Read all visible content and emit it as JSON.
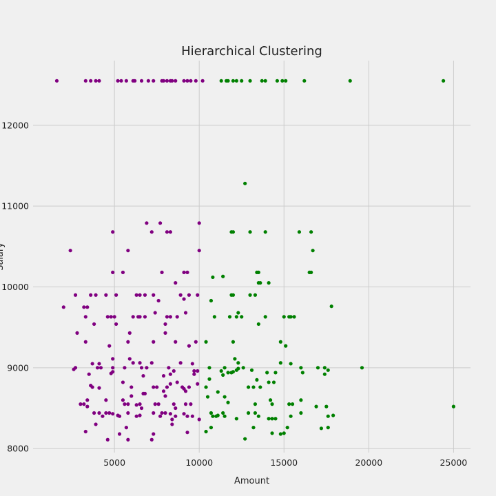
{
  "chart_data": {
    "type": "scatter",
    "title": "Hierarchical Clustering",
    "xlabel": "Amount",
    "ylabel": "Salary",
    "xlim": [
      200,
      26000
    ],
    "ylim": [
      7950,
      12800
    ],
    "xticks": [
      5000,
      10000,
      15000,
      20000,
      25000
    ],
    "yticks": [
      8000,
      9000,
      10000,
      11000,
      12000
    ],
    "grid": true,
    "legend": "none",
    "colors": {
      "cluster_1": "#800080",
      "cluster_2": "#008000"
    },
    "series": [
      {
        "color_key": "cluster_1",
        "points": [
          [
            1600,
            12550
          ],
          [
            3300,
            12550
          ],
          [
            3600,
            12550
          ],
          [
            3900,
            12550
          ],
          [
            4100,
            12550
          ],
          [
            5200,
            12550
          ],
          [
            5400,
            12550
          ],
          [
            5700,
            12550
          ],
          [
            6100,
            12550
          ],
          [
            6200,
            12550
          ],
          [
            6600,
            12550
          ],
          [
            7000,
            12550
          ],
          [
            7300,
            12550
          ],
          [
            7800,
            12550
          ],
          [
            7900,
            12550
          ],
          [
            8100,
            12550
          ],
          [
            8300,
            12550
          ],
          [
            8400,
            12550
          ],
          [
            8600,
            12550
          ],
          [
            9100,
            12550
          ],
          [
            9300,
            12550
          ],
          [
            9500,
            12550
          ],
          [
            9800,
            12550
          ],
          [
            10200,
            12550
          ],
          [
            4900,
            10680
          ],
          [
            6900,
            10790
          ],
          [
            7200,
            10680
          ],
          [
            7700,
            10790
          ],
          [
            8100,
            10680
          ],
          [
            8300,
            10680
          ],
          [
            10000,
            10790
          ],
          [
            2400,
            10450
          ],
          [
            5800,
            10450
          ],
          [
            10000,
            10450
          ],
          [
            4900,
            10180
          ],
          [
            5500,
            10180
          ],
          [
            7800,
            10180
          ],
          [
            9100,
            10180
          ],
          [
            9300,
            10180
          ],
          [
            8600,
            10050
          ],
          [
            2700,
            9900
          ],
          [
            3600,
            9900
          ],
          [
            3900,
            9900
          ],
          [
            4500,
            9900
          ],
          [
            5100,
            9900
          ],
          [
            6300,
            9900
          ],
          [
            6500,
            9900
          ],
          [
            6800,
            9900
          ],
          [
            7300,
            9900
          ],
          [
            8900,
            9900
          ],
          [
            9100,
            9850
          ],
          [
            9400,
            9900
          ],
          [
            9900,
            9900
          ],
          [
            7600,
            9830
          ],
          [
            2000,
            9750
          ],
          [
            3200,
            9750
          ],
          [
            3400,
            9750
          ],
          [
            3300,
            9630
          ],
          [
            4600,
            9630
          ],
          [
            4800,
            9630
          ],
          [
            5000,
            9630
          ],
          [
            5100,
            9540
          ],
          [
            6100,
            9630
          ],
          [
            6400,
            9630
          ],
          [
            6500,
            9630
          ],
          [
            6800,
            9630
          ],
          [
            7400,
            9680
          ],
          [
            8100,
            9630
          ],
          [
            8300,
            9630
          ],
          [
            8700,
            9630
          ],
          [
            9200,
            9680
          ],
          [
            3800,
            9540
          ],
          [
            8000,
            9540
          ],
          [
            2800,
            9430
          ],
          [
            5900,
            9430
          ],
          [
            8000,
            9430
          ],
          [
            3300,
            9320
          ],
          [
            4700,
            9270
          ],
          [
            5800,
            9320
          ],
          [
            7300,
            9320
          ],
          [
            8600,
            9320
          ],
          [
            9400,
            9270
          ],
          [
            9800,
            9320
          ],
          [
            4900,
            9110
          ],
          [
            5900,
            9110
          ],
          [
            6100,
            9060
          ],
          [
            6500,
            9060
          ],
          [
            7200,
            9060
          ],
          [
            8900,
            9060
          ],
          [
            9600,
            9050
          ],
          [
            2600,
            8980
          ],
          [
            2700,
            9000
          ],
          [
            3700,
            9050
          ],
          [
            4000,
            9000
          ],
          [
            4100,
            9050
          ],
          [
            4200,
            9000
          ],
          [
            4900,
            9000
          ],
          [
            4900,
            8950
          ],
          [
            5600,
            9000
          ],
          [
            6600,
            9000
          ],
          [
            6900,
            9000
          ],
          [
            8200,
            9000
          ],
          [
            8500,
            8960
          ],
          [
            9700,
            8960
          ],
          [
            9900,
            8960
          ],
          [
            3500,
            8920
          ],
          [
            4800,
            8930
          ],
          [
            6700,
            8900
          ],
          [
            7900,
            8900
          ],
          [
            8300,
            8920
          ],
          [
            9700,
            8920
          ],
          [
            3600,
            8780
          ],
          [
            3700,
            8760
          ],
          [
            4100,
            8750
          ],
          [
            5500,
            8820
          ],
          [
            6000,
            8760
          ],
          [
            7300,
            8760
          ],
          [
            7500,
            8760
          ],
          [
            7900,
            8710
          ],
          [
            8100,
            8760
          ],
          [
            8300,
            8800
          ],
          [
            8700,
            8820
          ],
          [
            9000,
            8760
          ],
          [
            9100,
            8740
          ],
          [
            9200,
            8710
          ],
          [
            9400,
            8760
          ],
          [
            9900,
            8800
          ],
          [
            3000,
            8550
          ],
          [
            3200,
            8550
          ],
          [
            3400,
            8600
          ],
          [
            3400,
            8520
          ],
          [
            4500,
            8600
          ],
          [
            5500,
            8600
          ],
          [
            5600,
            8550
          ],
          [
            5800,
            8550
          ],
          [
            6000,
            8650
          ],
          [
            6300,
            8540
          ],
          [
            6500,
            8550
          ],
          [
            6600,
            8500
          ],
          [
            6700,
            8680
          ],
          [
            6800,
            8680
          ],
          [
            7400,
            8550
          ],
          [
            7600,
            8550
          ],
          [
            8000,
            8650
          ],
          [
            8500,
            8550
          ],
          [
            8600,
            8500
          ],
          [
            9200,
            8550
          ],
          [
            9500,
            8550
          ],
          [
            3800,
            8440
          ],
          [
            4100,
            8440
          ],
          [
            4300,
            8400
          ],
          [
            4500,
            8440
          ],
          [
            4700,
            8440
          ],
          [
            4900,
            8430
          ],
          [
            5200,
            8410
          ],
          [
            5300,
            8400
          ],
          [
            5800,
            8440
          ],
          [
            6300,
            8400
          ],
          [
            6500,
            8410
          ],
          [
            7300,
            8440
          ],
          [
            7700,
            8400
          ],
          [
            7800,
            8440
          ],
          [
            8000,
            8440
          ],
          [
            8300,
            8430
          ],
          [
            8600,
            8400
          ],
          [
            9100,
            8430
          ],
          [
            9300,
            8400
          ],
          [
            9600,
            8400
          ],
          [
            10000,
            8360
          ],
          [
            8400,
            8360
          ],
          [
            3300,
            8210
          ],
          [
            3900,
            8300
          ],
          [
            5300,
            8180
          ],
          [
            5700,
            8260
          ],
          [
            7300,
            8180
          ],
          [
            8400,
            8300
          ],
          [
            9300,
            8200
          ],
          [
            4600,
            8110
          ],
          [
            5800,
            8110
          ],
          [
            7200,
            8110
          ]
        ]
      },
      {
        "color_key": "cluster_2",
        "points": [
          [
            11300,
            12550
          ],
          [
            11600,
            12550
          ],
          [
            11700,
            12550
          ],
          [
            12000,
            12550
          ],
          [
            12200,
            12550
          ],
          [
            12500,
            12550
          ],
          [
            13000,
            12550
          ],
          [
            13700,
            12550
          ],
          [
            13900,
            12550
          ],
          [
            14600,
            12550
          ],
          [
            14900,
            12550
          ],
          [
            15100,
            12550
          ],
          [
            16200,
            12550
          ],
          [
            18900,
            12550
          ],
          [
            24400,
            12550
          ],
          [
            12700,
            11280
          ],
          [
            11900,
            10680
          ],
          [
            12000,
            10680
          ],
          [
            13000,
            10680
          ],
          [
            13900,
            10680
          ],
          [
            15900,
            10680
          ],
          [
            16600,
            10680
          ],
          [
            16700,
            10450
          ],
          [
            13400,
            10180
          ],
          [
            13500,
            10180
          ],
          [
            16500,
            10180
          ],
          [
            16600,
            10180
          ],
          [
            10800,
            10120
          ],
          [
            11400,
            10130
          ],
          [
            13500,
            10050
          ],
          [
            13600,
            10050
          ],
          [
            14100,
            10050
          ],
          [
            11900,
            9900
          ],
          [
            12000,
            9900
          ],
          [
            13000,
            9900
          ],
          [
            13300,
            9900
          ],
          [
            10700,
            9830
          ],
          [
            10900,
            9630
          ],
          [
            11800,
            9630
          ],
          [
            12200,
            9630
          ],
          [
            12300,
            9680
          ],
          [
            12500,
            9630
          ],
          [
            13900,
            9630
          ],
          [
            15000,
            9630
          ],
          [
            15300,
            9630
          ],
          [
            15400,
            9630
          ],
          [
            15600,
            9630
          ],
          [
            13500,
            9540
          ],
          [
            17800,
            9760
          ],
          [
            10400,
            9320
          ],
          [
            12000,
            9320
          ],
          [
            14800,
            9320
          ],
          [
            15100,
            9270
          ],
          [
            12100,
            9110
          ],
          [
            12300,
            9060
          ],
          [
            14800,
            9060
          ],
          [
            15400,
            9050
          ],
          [
            10600,
            9000
          ],
          [
            11300,
            8960
          ],
          [
            11500,
            9000
          ],
          [
            11700,
            8940
          ],
          [
            12000,
            8950
          ],
          [
            12200,
            8970
          ],
          [
            12300,
            8990
          ],
          [
            12600,
            9000
          ],
          [
            13100,
            8970
          ],
          [
            14000,
            8940
          ],
          [
            14500,
            8940
          ],
          [
            16000,
            9000
          ],
          [
            16100,
            8940
          ],
          [
            17000,
            9000
          ],
          [
            17400,
            9000
          ],
          [
            17600,
            8970
          ],
          [
            17400,
            8920
          ],
          [
            19600,
            9000
          ],
          [
            11400,
            8910
          ],
          [
            11900,
            8940
          ],
          [
            13400,
            8850
          ],
          [
            14100,
            8820
          ],
          [
            14400,
            8820
          ],
          [
            10600,
            8860
          ],
          [
            10400,
            8760
          ],
          [
            12900,
            8760
          ],
          [
            13200,
            8760
          ],
          [
            13600,
            8760
          ],
          [
            11100,
            8700
          ],
          [
            11500,
            8640
          ],
          [
            11700,
            8570
          ],
          [
            10500,
            8640
          ],
          [
            15300,
            8550
          ],
          [
            15500,
            8550
          ],
          [
            16000,
            8600
          ],
          [
            14200,
            8600
          ],
          [
            14300,
            8550
          ],
          [
            13300,
            8550
          ],
          [
            16900,
            8520
          ],
          [
            17500,
            8520
          ],
          [
            25000,
            8520
          ],
          [
            10700,
            8440
          ],
          [
            10800,
            8400
          ],
          [
            11000,
            8400
          ],
          [
            11100,
            8410
          ],
          [
            11400,
            8440
          ],
          [
            11500,
            8400
          ],
          [
            12200,
            8370
          ],
          [
            12900,
            8440
          ],
          [
            13300,
            8440
          ],
          [
            13500,
            8400
          ],
          [
            14100,
            8370
          ],
          [
            14300,
            8370
          ],
          [
            14500,
            8370
          ],
          [
            15400,
            8400
          ],
          [
            16000,
            8440
          ],
          [
            17600,
            8400
          ],
          [
            17900,
            8410
          ],
          [
            13200,
            8260
          ],
          [
            15200,
            8260
          ],
          [
            17200,
            8250
          ],
          [
            17600,
            8260
          ],
          [
            10400,
            8210
          ],
          [
            10700,
            8260
          ],
          [
            14300,
            8190
          ],
          [
            14800,
            8180
          ],
          [
            15000,
            8190
          ],
          [
            12700,
            8120
          ]
        ]
      }
    ]
  }
}
